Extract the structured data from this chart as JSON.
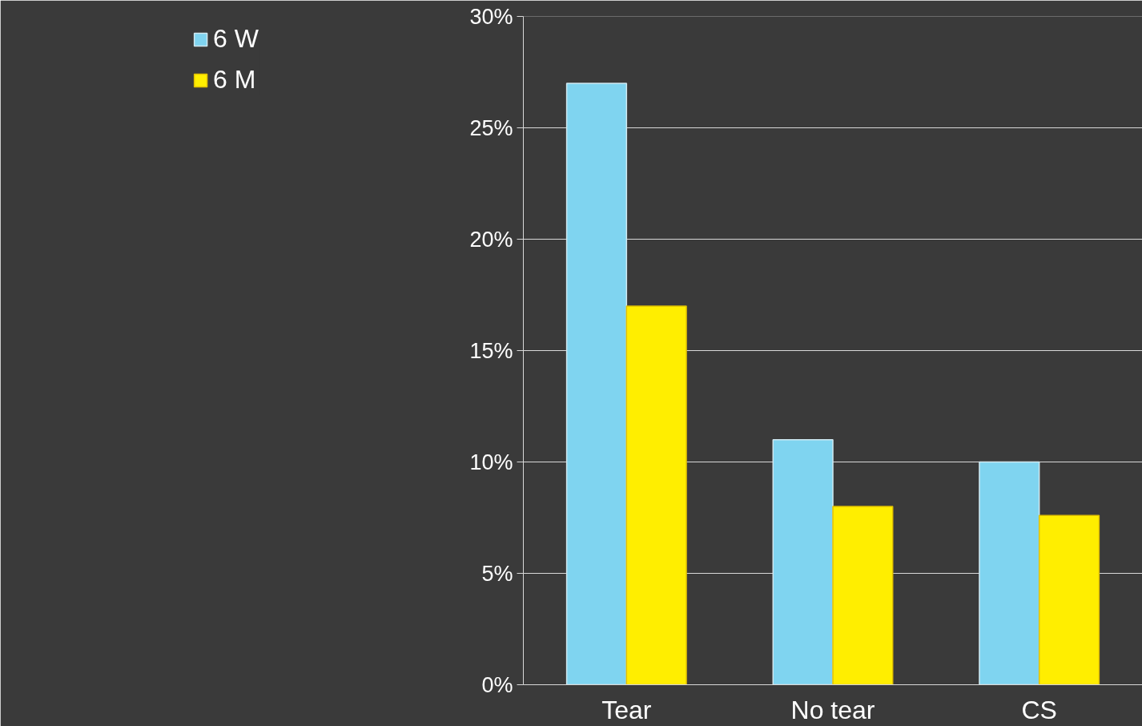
{
  "chart_data": {
    "type": "bar",
    "categories": [
      "Tear",
      "No tear",
      "CS"
    ],
    "series": [
      {
        "name": "6 W",
        "color": "#7fd4f0",
        "values": [
          27,
          11,
          10
        ]
      },
      {
        "name": "6 M",
        "color": "#ffee00",
        "values": [
          17,
          8,
          7.6
        ]
      }
    ],
    "ylim": [
      0,
      30
    ],
    "yticks": [
      {
        "value": 0,
        "label": "0%"
      },
      {
        "value": 5,
        "label": "5%"
      },
      {
        "value": 10,
        "label": "10%"
      },
      {
        "value": 15,
        "label": "15%"
      },
      {
        "value": 20,
        "label": "20%"
      },
      {
        "value": 25,
        "label": "25%"
      },
      {
        "value": 30,
        "label": "30%"
      }
    ],
    "grid": "y",
    "legend": "left"
  }
}
